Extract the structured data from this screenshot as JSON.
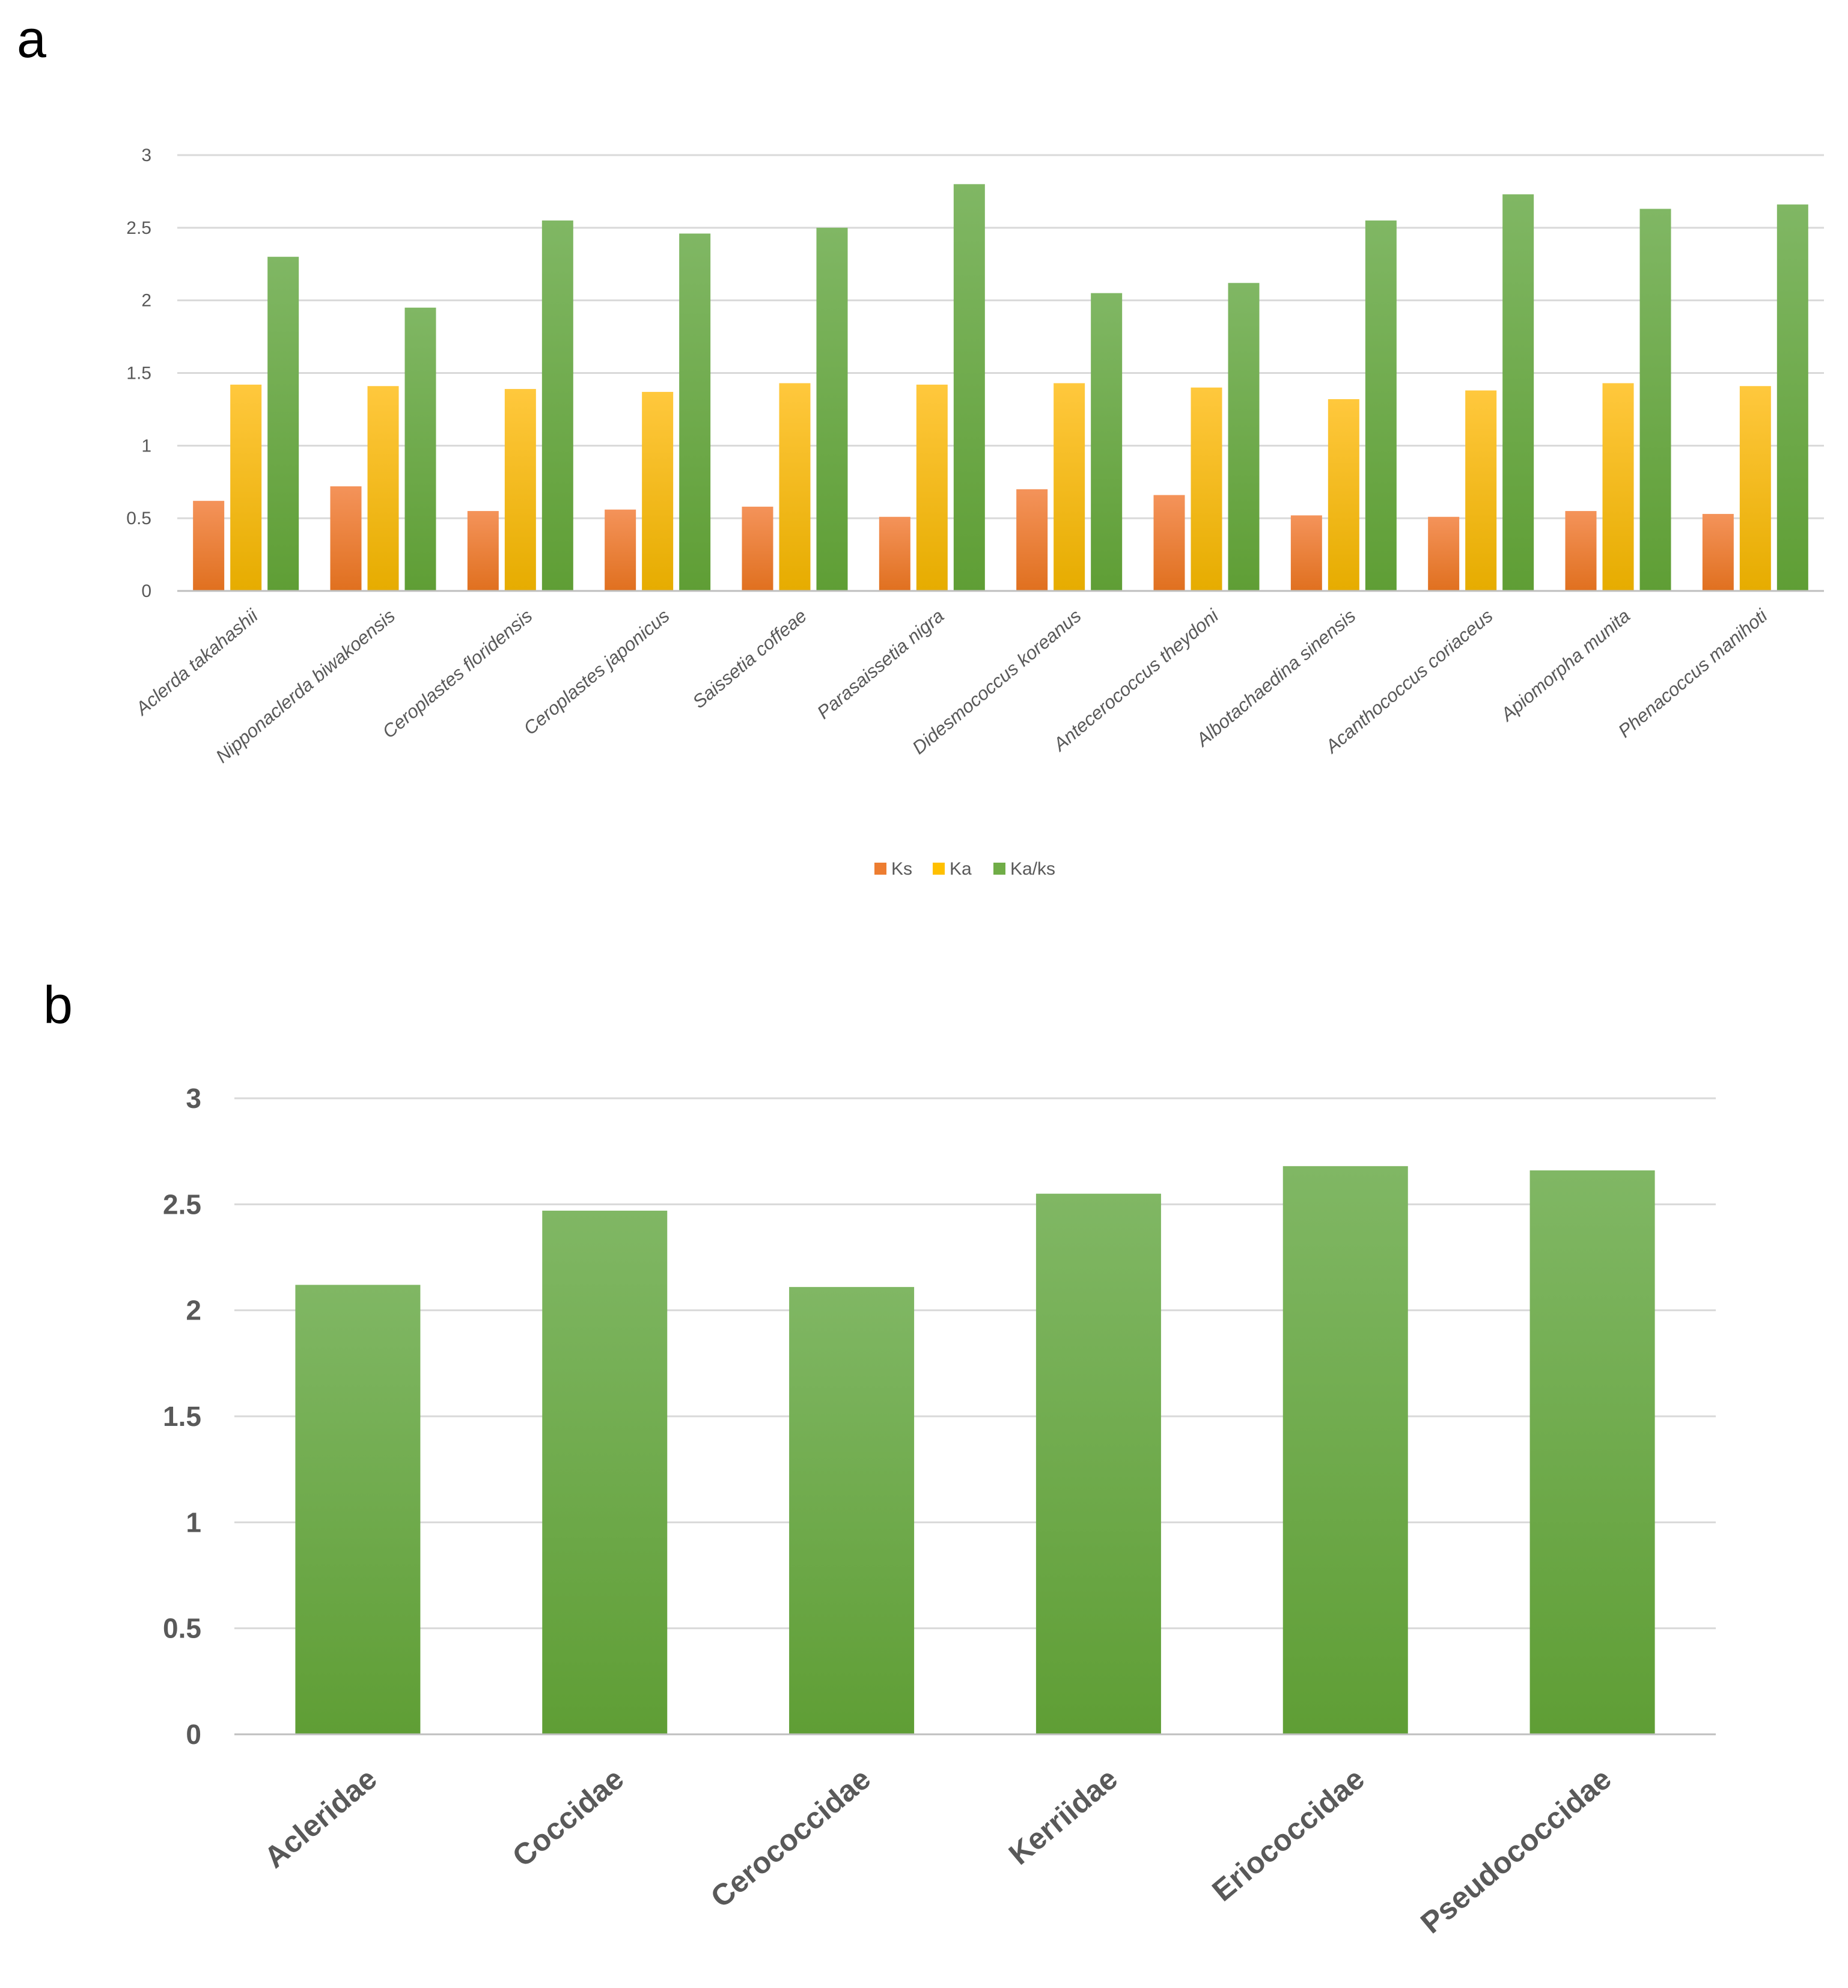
{
  "chart_data": [
    {
      "panel_label": "a",
      "type": "bar",
      "categories": [
        "Aclerda takahashii",
        "Nipponaclerda biwakoensis",
        "Ceroplastes floridensis",
        "Ceroplastes japonicus",
        "Saissetia coffeae",
        "Parasaissetia nigra",
        "Didesmococcus koreanus",
        "Antecerococcus theydoni",
        "Albotachaedina sinensis",
        "Acanthococcus coriaceus",
        "Apiomorpha munita",
        "Phenacoccus manihoti"
      ],
      "series": [
        {
          "name": "Ks",
          "values": [
            0.62,
            0.72,
            0.55,
            0.56,
            0.58,
            0.51,
            0.7,
            0.66,
            0.52,
            0.51,
            0.55,
            0.53
          ]
        },
        {
          "name": "Ka",
          "values": [
            1.42,
            1.41,
            1.39,
            1.37,
            1.43,
            1.42,
            1.43,
            1.4,
            1.32,
            1.38,
            1.43,
            1.41
          ]
        },
        {
          "name": "Ka/ks",
          "values": [
            2.3,
            1.95,
            2.55,
            2.46,
            2.5,
            2.8,
            2.05,
            2.12,
            2.55,
            2.73,
            2.63,
            2.66
          ]
        }
      ],
      "colors": [
        "#ed7d31",
        "#ffc000",
        "#70ad47"
      ],
      "y_ticks": [
        "0",
        "0.5",
        "1",
        "1.5",
        "2",
        "2.5",
        "3"
      ],
      "ylim": [
        0,
        3
      ],
      "legend_position": "bottom-center",
      "xlabel": "",
      "ylabel": ""
    },
    {
      "panel_label": "b",
      "type": "bar",
      "categories": [
        "Acleridae",
        "Coccidae",
        "Cerococcidae",
        "Kerriidae",
        "Eriococcidae",
        "Pseudococcidae"
      ],
      "series": [
        {
          "name": "Ka/ks",
          "values": [
            2.12,
            2.47,
            2.11,
            2.55,
            2.68,
            2.66
          ]
        }
      ],
      "colors": [
        "#70ad47"
      ],
      "y_ticks": [
        "0",
        "0.5",
        "1",
        "1.5",
        "2",
        "2.5",
        "3"
      ],
      "ylim": [
        0,
        3
      ],
      "xlabel": "",
      "ylabel": ""
    }
  ]
}
